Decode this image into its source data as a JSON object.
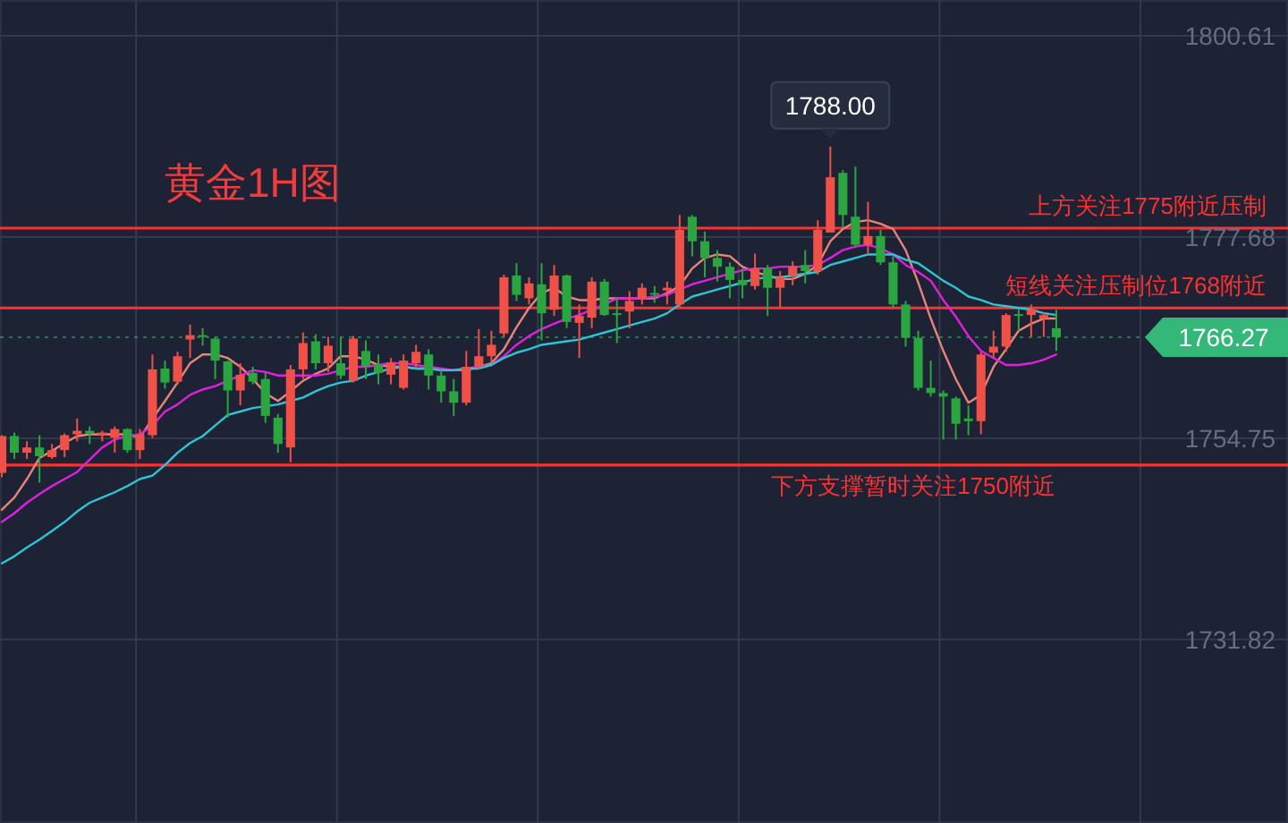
{
  "chart_data": {
    "type": "candlestick",
    "title": "黄金1H图",
    "categories": [
      null,
      null,
      null,
      null,
      null,
      null,
      null,
      null,
      null,
      null,
      null,
      null,
      null,
      null,
      null,
      null,
      null,
      null,
      null,
      null,
      null,
      null,
      null,
      null,
      null,
      null,
      null,
      null,
      null,
      null,
      null,
      null,
      null,
      null,
      null,
      null,
      null,
      null,
      null,
      null,
      null,
      null,
      null,
      null,
      null,
      null,
      null,
      null,
      null,
      null,
      null,
      null,
      null,
      null,
      null,
      null,
      null,
      null,
      null,
      null,
      null,
      null,
      null,
      null,
      null,
      null,
      null,
      null,
      null,
      null,
      null,
      null,
      null,
      null,
      null,
      null,
      null,
      null,
      null,
      null,
      null,
      null,
      null,
      null,
      null
    ],
    "ohlc": [
      [
        1750.8,
        1755.1,
        1750.3,
        1755.0
      ],
      [
        1755.0,
        1755.4,
        1752.4,
        1753.1
      ],
      [
        1753.1,
        1754.4,
        1752.4,
        1753.7
      ],
      [
        1753.7,
        1755.1,
        1749.7,
        1752.7
      ],
      [
        1752.6,
        1754.1,
        1752.4,
        1753.4
      ],
      [
        1753.4,
        1755.3,
        1752.6,
        1755.1
      ],
      [
        1755.2,
        1757.0,
        1754.4,
        1755.6
      ],
      [
        1755.6,
        1756.1,
        1754.1,
        1755.3
      ],
      [
        1755.1,
        1755.6,
        1754.4,
        1755.4
      ],
      [
        1754.8,
        1756.1,
        1753.1,
        1755.8
      ],
      [
        1755.8,
        1755.9,
        1753.1,
        1753.4
      ],
      [
        1753.4,
        1755.8,
        1752.4,
        1755.2
      ],
      [
        1755.1,
        1764.3,
        1754.8,
        1762.6
      ],
      [
        1762.7,
        1763.6,
        1760.4,
        1761.1
      ],
      [
        1761.2,
        1764.6,
        1760.9,
        1764.1
      ],
      [
        1766.0,
        1767.7,
        1763.9,
        1766.5
      ],
      [
        1766.5,
        1767.3,
        1765.3,
        1766.3
      ],
      [
        1766.1,
        1766.3,
        1761.5,
        1763.6
      ],
      [
        1763.5,
        1763.6,
        1757.1,
        1760.2
      ],
      [
        1760.2,
        1763.3,
        1758.5,
        1762.0
      ],
      [
        1762.2,
        1762.9,
        1760.9,
        1761.2
      ],
      [
        1761.5,
        1762.2,
        1756.5,
        1757.3
      ],
      [
        1757.1,
        1757.5,
        1753.1,
        1754.1
      ],
      [
        1753.7,
        1763.1,
        1752.0,
        1762.6
      ],
      [
        1762.6,
        1766.8,
        1761.5,
        1765.6
      ],
      [
        1765.8,
        1766.6,
        1762.6,
        1763.3
      ],
      [
        1763.3,
        1766.3,
        1762.3,
        1765.3
      ],
      [
        1763.3,
        1766.3,
        1761.5,
        1761.9
      ],
      [
        1761.3,
        1766.4,
        1761.1,
        1766.1
      ],
      [
        1764.7,
        1765.9,
        1761.5,
        1762.9
      ],
      [
        1763.1,
        1764.3,
        1760.9,
        1762.2
      ],
      [
        1762.0,
        1763.9,
        1760.9,
        1763.4
      ],
      [
        1760.5,
        1764.3,
        1760.3,
        1763.6
      ],
      [
        1763.3,
        1765.4,
        1762.7,
        1764.6
      ],
      [
        1764.3,
        1764.9,
        1760.3,
        1761.9
      ],
      [
        1761.9,
        1762.5,
        1758.8,
        1760.1
      ],
      [
        1760.1,
        1761.5,
        1757.3,
        1758.8
      ],
      [
        1758.8,
        1764.7,
        1758.5,
        1762.9
      ],
      [
        1762.9,
        1767.2,
        1762.6,
        1764.1
      ],
      [
        1764.1,
        1767.0,
        1763.3,
        1765.4
      ],
      [
        1766.7,
        1773.4,
        1766.3,
        1773.1
      ],
      [
        1773.3,
        1774.7,
        1770.4,
        1771.1
      ],
      [
        1770.7,
        1773.1,
        1770.0,
        1772.4
      ],
      [
        1772.3,
        1774.7,
        1765.9,
        1769.0
      ],
      [
        1769.4,
        1774.5,
        1768.7,
        1773.3
      ],
      [
        1773.3,
        1773.4,
        1767.3,
        1768.0
      ],
      [
        1767.9,
        1770.0,
        1763.9,
        1768.7
      ],
      [
        1768.5,
        1773.1,
        1767.3,
        1772.6
      ],
      [
        1772.6,
        1772.9,
        1768.7,
        1768.8
      ],
      [
        1769.0,
        1770.7,
        1765.6,
        1768.8
      ],
      [
        1769.2,
        1771.5,
        1767.3,
        1770.4
      ],
      [
        1770.6,
        1772.4,
        1770.0,
        1771.9
      ],
      [
        1771.3,
        1772.1,
        1770.2,
        1771.2
      ],
      [
        1771.6,
        1772.6,
        1770.0,
        1771.9
      ],
      [
        1770.0,
        1780.2,
        1769.7,
        1778.5
      ],
      [
        1780.0,
        1780.2,
        1775.5,
        1777.2
      ],
      [
        1777.2,
        1778.3,
        1773.1,
        1775.3
      ],
      [
        1775.3,
        1776.2,
        1772.6,
        1774.3
      ],
      [
        1774.3,
        1774.8,
        1770.7,
        1772.8
      ],
      [
        1772.8,
        1774.1,
        1770.7,
        1772.2
      ],
      [
        1772.1,
        1775.8,
        1771.7,
        1774.1
      ],
      [
        1774.1,
        1774.5,
        1768.7,
        1771.9
      ],
      [
        1771.9,
        1773.8,
        1769.7,
        1773.1
      ],
      [
        1773.3,
        1774.9,
        1772.2,
        1774.3
      ],
      [
        1774.5,
        1776.2,
        1772.4,
        1773.8
      ],
      [
        1773.8,
        1779.6,
        1773.4,
        1778.5
      ],
      [
        1778.2,
        1788.0,
        1778.2,
        1784.5
      ],
      [
        1785.0,
        1785.3,
        1778.7,
        1780.2
      ],
      [
        1780.0,
        1785.7,
        1776.5,
        1776.8
      ],
      [
        1776.8,
        1781.7,
        1775.8,
        1777.8
      ],
      [
        1777.8,
        1778.5,
        1774.5,
        1774.8
      ],
      [
        1774.8,
        1775.5,
        1769.7,
        1770.0
      ],
      [
        1770.0,
        1770.4,
        1765.2,
        1766.2
      ],
      [
        1766.2,
        1767.0,
        1760.2,
        1760.5
      ],
      [
        1760.5,
        1763.6,
        1759.5,
        1759.9
      ],
      [
        1759.9,
        1760.2,
        1754.6,
        1759.5
      ],
      [
        1759.3,
        1759.5,
        1754.6,
        1756.4
      ],
      [
        1757.0,
        1758.5,
        1755.1,
        1756.7
      ],
      [
        1756.7,
        1764.6,
        1755.2,
        1764.3
      ],
      [
        1764.5,
        1767.0,
        1763.9,
        1765.2
      ],
      [
        1765.2,
        1769.0,
        1764.6,
        1768.8
      ],
      [
        1768.9,
        1769.4,
        1767.0,
        1768.7
      ],
      [
        1768.8,
        1770.0,
        1766.3,
        1769.4
      ],
      [
        1768.4,
        1769.0,
        1766.3,
        1768.8
      ],
      [
        1767.3,
        1769.4,
        1764.7,
        1766.27
      ]
    ],
    "colors": [
      "#ef5047",
      "#2ba540",
      "#ef5047",
      "#2ba540",
      "#ef5047",
      "#ef5047",
      "#ef5047",
      "#2ba540",
      "#ef5047",
      "#ef5047",
      "#2ba540",
      "#ef5047",
      "#ef5047",
      "#2ba540",
      "#ef5047",
      "#ef5047",
      "#2ba540",
      "#2ba540",
      "#2ba540",
      "#ef5047",
      "#2ba540",
      "#2ba540",
      "#2ba540",
      "#ef5047",
      "#ef5047",
      "#2ba540",
      "#ef5047",
      "#2ba540",
      "#ef5047",
      "#2ba540",
      "#2ba540",
      "#ef5047",
      "#ef5047",
      "#ef5047",
      "#2ba540",
      "#2ba540",
      "#2ba540",
      "#ef5047",
      "#ef5047",
      "#ef5047",
      "#ef5047",
      "#2ba540",
      "#ef5047",
      "#2ba540",
      "#ef5047",
      "#2ba540",
      "#ef5047",
      "#ef5047",
      "#2ba540",
      "#2ba540",
      "#ef5047",
      "#ef5047",
      "#2ba540",
      "#ef5047",
      "#ef5047",
      "#2ba540",
      "#2ba540",
      "#2ba540",
      "#2ba540",
      "#2ba540",
      "#ef5047",
      "#2ba540",
      "#ef5047",
      "#ef5047",
      "#2ba540",
      "#ef5047",
      "#ef5047",
      "#2ba540",
      "#2ba540",
      "#ef5047",
      "#2ba540",
      "#2ba540",
      "#2ba540",
      "#2ba540",
      "#2ba540",
      "#2ba540",
      "#2ba540",
      "#2ba540",
      "#ef5047",
      "#ef5047",
      "#ef5047",
      "#2ba540",
      "#ef5047",
      "#ef5047",
      "#2ba540"
    ],
    "series": [
      {
        "type": "line",
        "color": "#e8857a",
        "values": [
          1746.6,
          1748.0,
          1750.1,
          1752.5,
          1753.3,
          1754.2,
          1755.0,
          1755.2,
          1755.2,
          1755.2,
          1755.2,
          1754.8,
          1757.0,
          1759.0,
          1761.1,
          1763.3,
          1764.3,
          1764.3,
          1763.9,
          1762.9,
          1761.5,
          1759.9,
          1759.0,
          1760.1,
          1761.3,
          1762.1,
          1762.7,
          1764.1,
          1764.1,
          1763.7,
          1763.1,
          1762.9,
          1762.9,
          1762.7,
          1762.7,
          1762.5,
          1762.5,
          1762.5,
          1762.9,
          1763.3,
          1764.9,
          1767.4,
          1769.6,
          1771.3,
          1771.9,
          1770.9,
          1770.5,
          1770.5,
          1770.7,
          1770.7,
          1770.7,
          1770.7,
          1770.7,
          1771.3,
          1772.1,
          1774.1,
          1775.3,
          1775.7,
          1775.5,
          1774.3,
          1773.7,
          1773.3,
          1772.9,
          1772.9,
          1773.5,
          1774.5,
          1777.2,
          1778.6,
          1779.4,
          1779.6,
          1779.2,
          1778.6,
          1776.2,
          1772.5,
          1768.4,
          1764.7,
          1761.5,
          1758.8,
          1759.7,
          1762.9,
          1764.9,
          1767.0,
          1767.8,
          1768.4,
          1768.4
        ]
      },
      {
        "type": "line",
        "color": "#e020e0",
        "values": [
          1745.2,
          1746.2,
          1747.4,
          1748.4,
          1749.3,
          1750.1,
          1750.9,
          1752.3,
          1753.7,
          1754.6,
          1755.0,
          1755.2,
          1756.2,
          1757.8,
          1758.6,
          1759.7,
          1760.3,
          1760.7,
          1761.3,
          1761.9,
          1762.5,
          1762.3,
          1761.9,
          1761.9,
          1761.9,
          1761.9,
          1762.1,
          1762.5,
          1762.9,
          1762.9,
          1763.1,
          1763.3,
          1763.3,
          1763.1,
          1762.9,
          1762.7,
          1762.5,
          1762.7,
          1762.9,
          1763.1,
          1764.1,
          1765.4,
          1766.4,
          1767.2,
          1767.8,
          1768.4,
          1768.8,
          1769.4,
          1770.0,
          1770.7,
          1770.7,
          1770.7,
          1770.9,
          1771.1,
          1771.7,
          1772.3,
          1772.7,
          1773.1,
          1773.5,
          1773.9,
          1774.1,
          1774.1,
          1774.3,
          1774.3,
          1774.3,
          1774.5,
          1775.3,
          1776.2,
          1776.6,
          1776.8,
          1776.4,
          1775.7,
          1774.5,
          1773.7,
          1772.7,
          1770.5,
          1768.6,
          1766.4,
          1764.7,
          1763.9,
          1763.1,
          1763.1,
          1763.3,
          1763.7,
          1764.3
        ]
      },
      {
        "type": "line",
        "color": "#2fc4d4",
        "values": [
          1740.5,
          1741.3,
          1742.3,
          1743.2,
          1744.2,
          1745.2,
          1746.4,
          1747.4,
          1748.0,
          1748.6,
          1749.3,
          1750.1,
          1750.5,
          1751.7,
          1753.1,
          1754.2,
          1755.0,
          1756.2,
          1757.4,
          1757.8,
          1758.2,
          1758.4,
          1758.6,
          1759.0,
          1759.4,
          1760.1,
          1760.7,
          1761.1,
          1761.3,
          1761.9,
          1762.3,
          1762.7,
          1762.9,
          1762.7,
          1762.7,
          1762.5,
          1762.5,
          1762.7,
          1762.7,
          1763.1,
          1763.9,
          1764.5,
          1764.9,
          1765.4,
          1765.6,
          1765.8,
          1766.0,
          1766.4,
          1766.8,
          1767.2,
          1767.6,
          1768.0,
          1768.4,
          1769.0,
          1770.0,
          1770.9,
          1771.3,
          1771.7,
          1772.1,
          1772.5,
          1772.9,
          1773.1,
          1773.1,
          1773.3,
          1773.5,
          1773.7,
          1774.5,
          1774.9,
          1775.3,
          1775.7,
          1775.7,
          1775.7,
          1775.1,
          1774.7,
          1773.7,
          1772.7,
          1771.9,
          1770.9,
          1770.5,
          1770.0,
          1769.8,
          1769.6,
          1769.4,
          1769.0,
          1768.8
        ]
      }
    ],
    "ylim": [
      1710.9,
      1804.7
    ],
    "yticks": [
      1800.61,
      1777.68,
      1754.75,
      1731.82
    ],
    "tick_labels": "y",
    "grid": true,
    "marker": "none",
    "line_style": "solid",
    "ref_lines": [
      {
        "axis": "y",
        "value": 1778.7,
        "label": "上方关注1775附近压制",
        "color": "#ff3030",
        "line_style": "solid"
      },
      {
        "axis": "y",
        "value": 1769.6,
        "label": "短线关注压制位1768附近",
        "color": "#ff3030",
        "line_style": "solid"
      },
      {
        "axis": "y",
        "value": 1751.7,
        "label": "下方支撑暂时关注1750附近",
        "color": "#ff3030",
        "line_style": "solid"
      },
      {
        "axis": "y",
        "value": 1766.27,
        "label": "1766.27",
        "color": "#33b879",
        "line_style": "dotted"
      }
    ],
    "annotations": [
      {
        "text": "1788.00",
        "y": 1788.0
      }
    ]
  }
}
